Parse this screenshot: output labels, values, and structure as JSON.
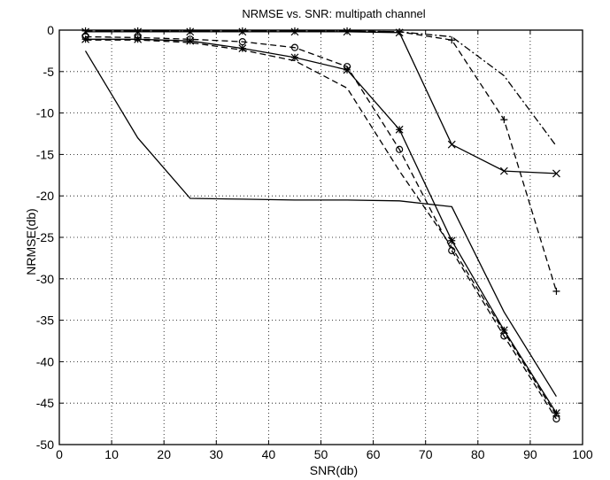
{
  "chart_data": {
    "type": "line",
    "title": "NRMSE vs. SNR: multipath channel",
    "xlabel": "SNR(db)",
    "ylabel": "NRMSE(db)",
    "xlim": [
      0,
      100
    ],
    "ylim": [
      -50,
      0
    ],
    "xticks": [
      0,
      10,
      20,
      30,
      40,
      50,
      60,
      70,
      80,
      90,
      100
    ],
    "yticks": [
      0,
      -5,
      -10,
      -15,
      -20,
      -25,
      -30,
      -35,
      -40,
      -45,
      -50
    ],
    "grid": true,
    "legend": "none",
    "series": [
      {
        "style": "solid",
        "marker": "none",
        "x": [
          5,
          15,
          25,
          35,
          45,
          55,
          65,
          75,
          85,
          95
        ],
        "y": [
          -2.5,
          -13,
          -20.3,
          -20.4,
          -20.5,
          -20.5,
          -20.6,
          -21.3,
          -34,
          -44.2
        ]
      },
      {
        "style": "solid",
        "marker": "x",
        "x": [
          5,
          15,
          25,
          35,
          45,
          55,
          65,
          75,
          85,
          95
        ],
        "y": [
          -0.2,
          -0.2,
          -0.2,
          -0.2,
          -0.2,
          -0.2,
          -0.3,
          -13.8,
          -17,
          -17.3
        ]
      },
      {
        "style": "solid",
        "marker": "asterisk",
        "x": [
          5,
          15,
          25,
          35,
          45,
          55,
          65,
          75,
          85,
          95
        ],
        "y": [
          -1.1,
          -1.1,
          -1.3,
          -2.2,
          -3.3,
          -4.8,
          -12,
          -25.4,
          -36.2,
          -46.2
        ]
      },
      {
        "style": "dashed",
        "marker": "circle",
        "x": [
          5,
          15,
          25,
          35,
          45,
          55,
          65,
          75,
          85,
          95
        ],
        "y": [
          -0.8,
          -0.9,
          -1.1,
          -1.4,
          -2.1,
          -4.4,
          -14.4,
          -26.6,
          -36.9,
          -46.9
        ]
      },
      {
        "style": "dashed",
        "marker": "none",
        "x": [
          5,
          15,
          25,
          35,
          45,
          55,
          65,
          75,
          85,
          95
        ],
        "y": [
          -1.2,
          -1.2,
          -1.5,
          -2.4,
          -3.7,
          -7,
          -17,
          -26.2,
          -36.4,
          -46.5
        ]
      },
      {
        "style": "dashed",
        "marker": "plus",
        "x": [
          5,
          15,
          25,
          35,
          45,
          55,
          65,
          75,
          85,
          95
        ],
        "y": [
          -0.1,
          -0.1,
          -0.1,
          -0.1,
          -0.1,
          -0.1,
          -0.2,
          -1.2,
          -10.8,
          -31.5
        ]
      },
      {
        "style": "dashdot",
        "marker": "none",
        "x": [
          5,
          15,
          25,
          35,
          45,
          55,
          65,
          75,
          85,
          95
        ],
        "y": [
          -0.1,
          -0.1,
          -0.1,
          -0.1,
          -0.1,
          -0.1,
          -0.2,
          -0.8,
          -5.5,
          -14
        ]
      }
    ]
  }
}
